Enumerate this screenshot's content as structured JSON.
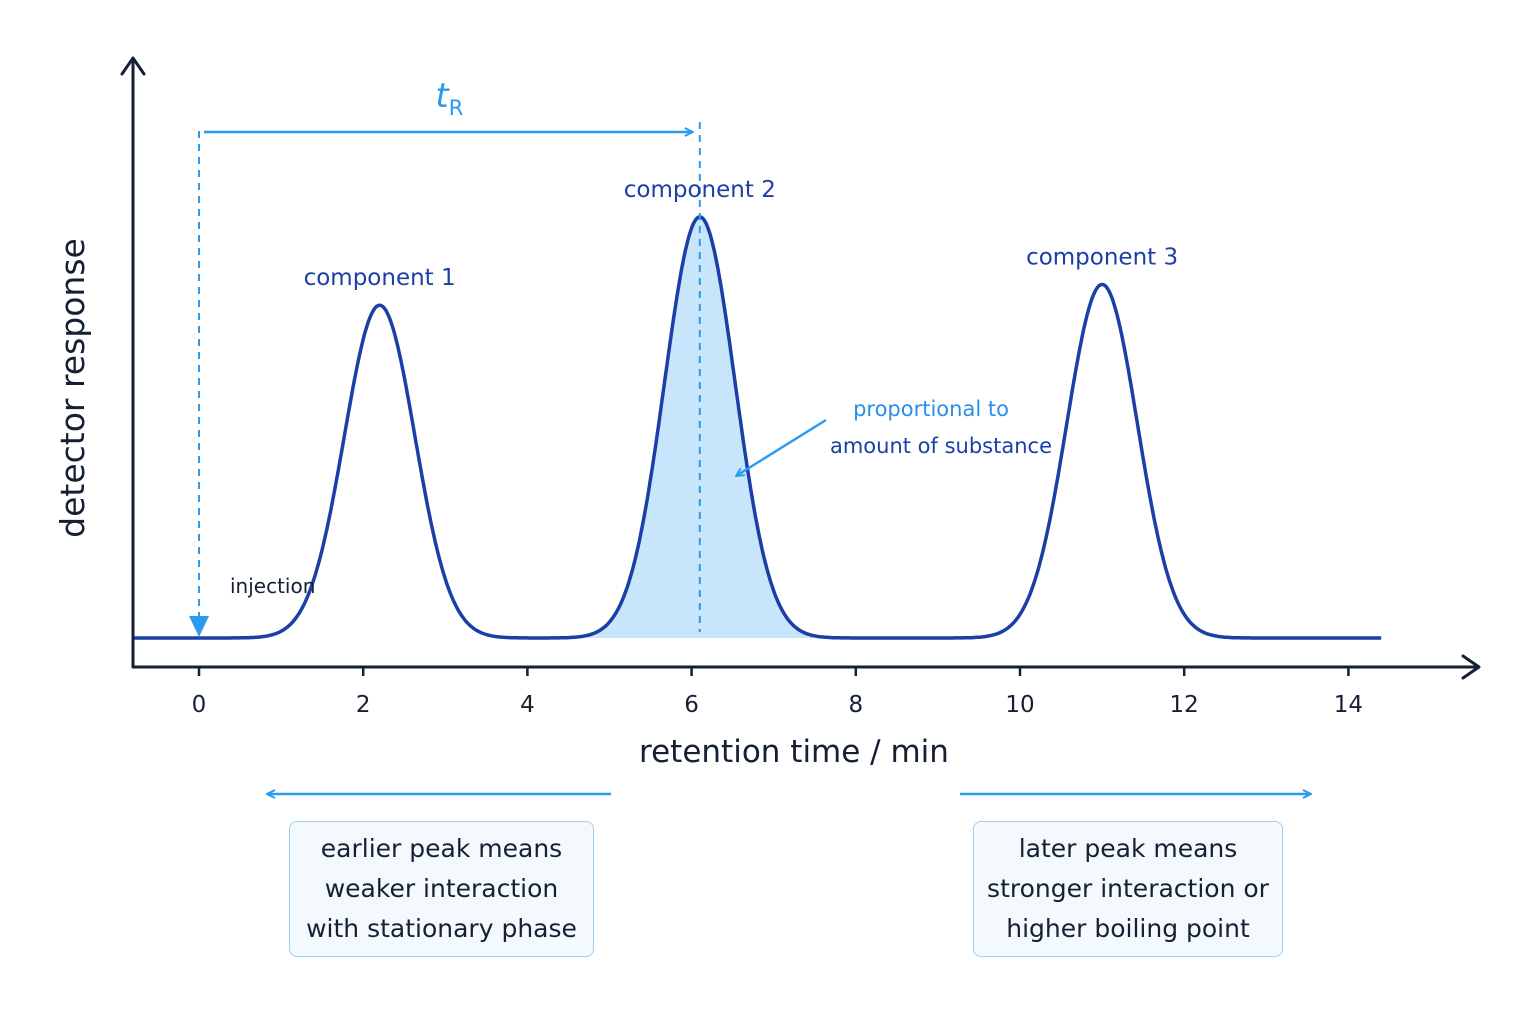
{
  "chart_data": {
    "type": "line",
    "title": "",
    "xlabel": "retention time / min",
    "ylabel": "detector response",
    "xlim": [
      -0.8,
      15.4
    ],
    "ylim": [
      0,
      1
    ],
    "x_ticks": [
      "0",
      "2",
      "4",
      "6",
      "8",
      "10",
      "12",
      "14"
    ],
    "grid": false,
    "peaks": [
      {
        "label": "component 1",
        "retention_time": 2.2,
        "height": 0.64
      },
      {
        "label": "component 2",
        "retention_time": 6.1,
        "height": 0.81,
        "shaded": true
      },
      {
        "label": "component 3",
        "retention_time": 11.0,
        "height": 0.68
      }
    ],
    "annotations": {
      "retention_marker": {
        "symbol": "t",
        "subscript": "R",
        "from": 0,
        "to": 6.1
      },
      "injection_label": "injection",
      "area_note": [
        "proportional to",
        "amount of substance"
      ]
    }
  },
  "notes": {
    "left": [
      "earlier peak means",
      "weaker interaction",
      "with stationary phase"
    ],
    "right": [
      "later peak means",
      "stronger interaction or",
      "higher boiling point"
    ]
  },
  "colors": {
    "curve": "#1a3fa6",
    "accent": "#2b9bf0",
    "fill": "#c8e6fb",
    "axis": "#152033"
  }
}
